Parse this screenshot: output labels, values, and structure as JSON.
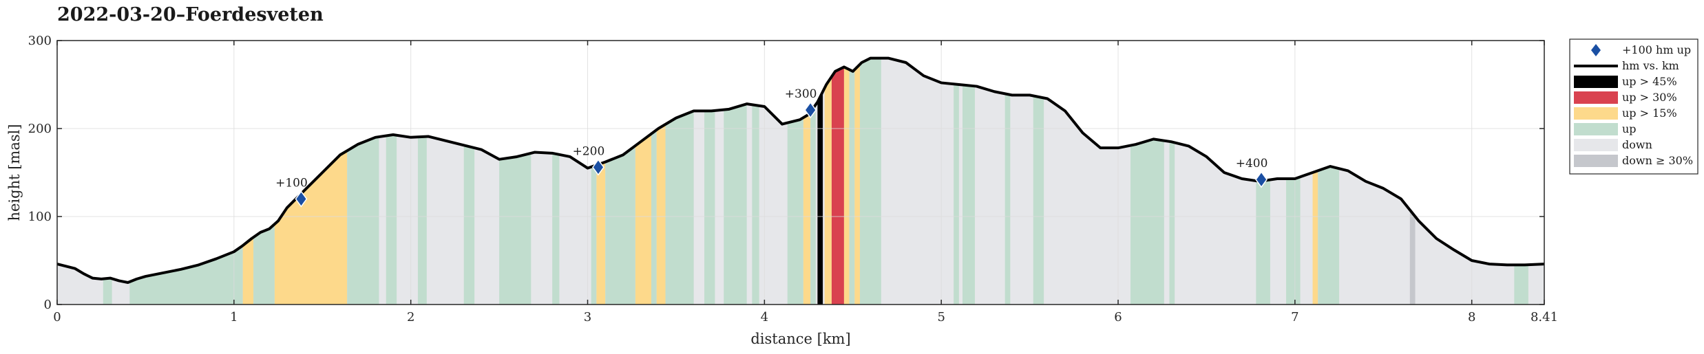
{
  "chart_data": {
    "type": "area",
    "title": "2022-03-20–Foerdesveten",
    "xlabel": "distance [km]",
    "ylabel": "height [masl]",
    "xlim": [
      0,
      8.41
    ],
    "ylim": [
      0,
      300
    ],
    "xticks": [
      "0",
      "1",
      "2",
      "3",
      "4",
      "5",
      "6",
      "7",
      "8",
      "8.41"
    ],
    "xtick_values": [
      0,
      1,
      2,
      3,
      4,
      5,
      6,
      7,
      8,
      8.41
    ],
    "yticks": [
      0,
      100,
      200,
      300
    ],
    "grid": true,
    "legend_position": "outside-right",
    "profile": {
      "x": [
        0,
        0.1,
        0.15,
        0.2,
        0.25,
        0.3,
        0.35,
        0.4,
        0.45,
        0.5,
        0.6,
        0.7,
        0.8,
        0.9,
        1.0,
        1.05,
        1.1,
        1.15,
        1.2,
        1.25,
        1.3,
        1.4,
        1.5,
        1.6,
        1.7,
        1.8,
        1.9,
        2.0,
        2.1,
        2.2,
        2.3,
        2.4,
        2.5,
        2.6,
        2.7,
        2.8,
        2.9,
        3.0,
        3.1,
        3.2,
        3.3,
        3.4,
        3.5,
        3.6,
        3.7,
        3.8,
        3.9,
        4.0,
        4.1,
        4.2,
        4.25,
        4.3,
        4.35,
        4.4,
        4.45,
        4.5,
        4.55,
        4.6,
        4.7,
        4.8,
        4.9,
        5.0,
        5.1,
        5.2,
        5.3,
        5.4,
        5.5,
        5.6,
        5.7,
        5.8,
        5.9,
        6.0,
        6.1,
        6.2,
        6.3,
        6.4,
        6.5,
        6.6,
        6.7,
        6.8,
        6.9,
        7.0,
        7.1,
        7.2,
        7.3,
        7.4,
        7.5,
        7.6,
        7.7,
        7.8,
        7.9,
        8.0,
        8.1,
        8.2,
        8.3,
        8.41
      ],
      "y": [
        46,
        41,
        35,
        30,
        29,
        30,
        27,
        25,
        29,
        32,
        36,
        40,
        45,
        52,
        60,
        67,
        75,
        82,
        86,
        95,
        110,
        130,
        150,
        170,
        182,
        190,
        193,
        190,
        191,
        186,
        181,
        176,
        165,
        168,
        173,
        172,
        168,
        155,
        162,
        170,
        185,
        200,
        212,
        220,
        220,
        222,
        228,
        225,
        205,
        210,
        216,
        230,
        250,
        265,
        270,
        265,
        275,
        280,
        280,
        275,
        260,
        252,
        250,
        248,
        242,
        238,
        238,
        234,
        220,
        195,
        178,
        178,
        182,
        188,
        185,
        180,
        168,
        150,
        143,
        140,
        143,
        143,
        150,
        157,
        152,
        140,
        132,
        120,
        95,
        75,
        62,
        50,
        46,
        45,
        45,
        46
      ]
    },
    "milestones": [
      {
        "label": "+100",
        "x": 1.38,
        "y": 120
      },
      {
        "label": "+200",
        "x": 3.06,
        "y": 156
      },
      {
        "label": "+300",
        "x": 4.26,
        "y": 221
      },
      {
        "label": "+400",
        "x": 6.81,
        "y": 142
      }
    ],
    "segments": [
      {
        "category": "up",
        "from": 0.26,
        "to": 0.31
      },
      {
        "category": "up",
        "from": 0.41,
        "to": 1.05
      },
      {
        "category": "up>15",
        "from": 1.05,
        "to": 1.11
      },
      {
        "category": "up",
        "from": 1.11,
        "to": 1.23
      },
      {
        "category": "up>15",
        "from": 1.23,
        "to": 1.64
      },
      {
        "category": "up",
        "from": 1.64,
        "to": 1.82
      },
      {
        "category": "up",
        "from": 1.86,
        "to": 1.92
      },
      {
        "category": "up",
        "from": 2.04,
        "to": 2.09
      },
      {
        "category": "up",
        "from": 2.3,
        "to": 2.36
      },
      {
        "category": "up",
        "from": 2.5,
        "to": 2.68
      },
      {
        "category": "up",
        "from": 2.8,
        "to": 2.84
      },
      {
        "category": "up",
        "from": 3.02,
        "to": 3.05
      },
      {
        "category": "up>15",
        "from": 3.05,
        "to": 3.1
      },
      {
        "category": "up",
        "from": 3.1,
        "to": 3.27
      },
      {
        "category": "up>15",
        "from": 3.27,
        "to": 3.36
      },
      {
        "category": "up",
        "from": 3.36,
        "to": 3.39
      },
      {
        "category": "up>15",
        "from": 3.39,
        "to": 3.44
      },
      {
        "category": "up",
        "from": 3.44,
        "to": 3.6
      },
      {
        "category": "up",
        "from": 3.66,
        "to": 3.72
      },
      {
        "category": "up",
        "from": 3.77,
        "to": 3.9
      },
      {
        "category": "up",
        "from": 3.93,
        "to": 3.97
      },
      {
        "category": "up",
        "from": 4.13,
        "to": 4.22
      },
      {
        "category": "up>15",
        "from": 4.22,
        "to": 4.26
      },
      {
        "category": "up",
        "from": 4.26,
        "to": 4.29
      },
      {
        "category": "up>45",
        "from": 4.3,
        "to": 4.33
      },
      {
        "category": "up>15",
        "from": 4.34,
        "to": 4.38
      },
      {
        "category": "up>30",
        "from": 4.38,
        "to": 4.45
      },
      {
        "category": "up>15",
        "from": 4.45,
        "to": 4.48
      },
      {
        "category": "up",
        "from": 4.48,
        "to": 4.51
      },
      {
        "category": "up>15",
        "from": 4.51,
        "to": 4.54
      },
      {
        "category": "up",
        "from": 4.54,
        "to": 4.66
      },
      {
        "category": "up",
        "from": 5.07,
        "to": 5.1
      },
      {
        "category": "up",
        "from": 5.12,
        "to": 5.19
      },
      {
        "category": "up",
        "from": 5.36,
        "to": 5.39
      },
      {
        "category": "up",
        "from": 5.52,
        "to": 5.58
      },
      {
        "category": "up",
        "from": 6.07,
        "to": 6.26
      },
      {
        "category": "up",
        "from": 6.29,
        "to": 6.32
      },
      {
        "category": "up",
        "from": 6.78,
        "to": 6.86
      },
      {
        "category": "up",
        "from": 6.95,
        "to": 7.03
      },
      {
        "category": "up>15",
        "from": 7.1,
        "to": 7.13
      },
      {
        "category": "up",
        "from": 7.13,
        "to": 7.25
      },
      {
        "category": "down>=30",
        "from": 7.65,
        "to": 7.68
      },
      {
        "category": "up",
        "from": 8.24,
        "to": 8.32
      }
    ],
    "legend": [
      {
        "key": "marker",
        "label": "+100 hm up"
      },
      {
        "key": "line",
        "label": "hm vs. km"
      },
      {
        "key": "up>45",
        "label": "up > 45%"
      },
      {
        "key": "up>30",
        "label": "up > 30%"
      },
      {
        "key": "up>15",
        "label": "up > 15%"
      },
      {
        "key": "up",
        "label": "up"
      },
      {
        "key": "down",
        "label": "down"
      },
      {
        "key": "down>=30",
        "label": "down ≥ 30%"
      }
    ],
    "colors": {
      "up>45": "#000000",
      "up>30": "#d9424f",
      "up>15": "#fdd98b",
      "up": "#c1ddce",
      "down": "#e6e7ea",
      "down>=30": "#c5c7cc",
      "marker": "#1a4fa3",
      "line": "#000000"
    }
  }
}
